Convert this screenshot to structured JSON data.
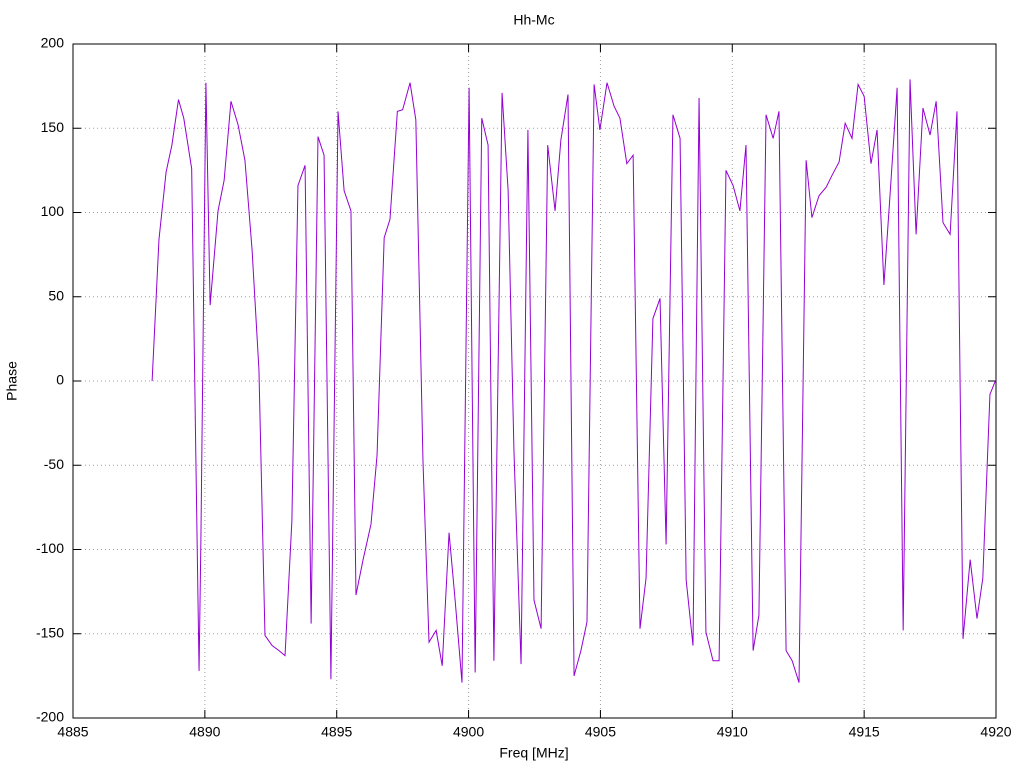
{
  "chart_data": {
    "type": "line",
    "title": "Hh-Mc",
    "x_label": "Freq [MHz]",
    "y_label": "Phase",
    "x": [
      4888.0,
      4888.26,
      4888.53,
      4888.75,
      4889.0,
      4889.2,
      4889.5,
      4889.66,
      4889.78,
      4889.85,
      4890.04,
      4890.2,
      4890.5,
      4890.73,
      4890.99,
      4891.26,
      4891.52,
      4891.79,
      4892.05,
      4892.28,
      4892.55,
      4892.81,
      4893.04,
      4893.3,
      4893.53,
      4893.8,
      4894.03,
      4894.29,
      4894.52,
      4894.78,
      4895.05,
      4895.28,
      4895.54,
      4895.73,
      4896.0,
      4896.3,
      4896.53,
      4896.8,
      4897.02,
      4897.3,
      4897.5,
      4897.78,
      4898.0,
      4898.27,
      4898.5,
      4898.77,
      4899.0,
      4899.26,
      4899.49,
      4899.75,
      4900.02,
      4900.25,
      4900.5,
      4900.74,
      4900.96,
      4901.27,
      4901.5,
      4901.72,
      4901.99,
      4902.25,
      4902.48,
      4902.75,
      4903.0,
      4903.28,
      4903.5,
      4903.77,
      4904.0,
      4904.26,
      4904.49,
      4904.76,
      4904.98,
      4905.25,
      4905.52,
      4905.74,
      4906.0,
      4906.24,
      4906.5,
      4906.73,
      4906.99,
      4907.26,
      4907.49,
      4907.75,
      4908.02,
      4908.25,
      4908.51,
      4908.74,
      4909.0,
      4909.27,
      4909.5,
      4909.76,
      4910.03,
      4910.29,
      4910.52,
      4910.79,
      4911.01,
      4911.28,
      4911.55,
      4911.77,
      4912.04,
      4912.27,
      4912.53,
      4912.8,
      4913.02,
      4913.29,
      4913.56,
      4913.78,
      4914.05,
      4914.28,
      4914.54,
      4914.77,
      4915.0,
      4915.26,
      4915.49,
      4915.75,
      4915.98,
      4916.25,
      4916.48,
      4916.74,
      4916.97,
      4917.23,
      4917.5,
      4917.73,
      4917.99,
      4918.26,
      4918.52,
      4918.75,
      4919.02,
      4919.28,
      4919.5,
      4919.77,
      4920.0
    ],
    "series": [
      {
        "name": "Phase",
        "color": "#9400d3",
        "values": [
          0,
          84,
          124,
          140,
          167,
          156,
          126,
          -47,
          -172,
          -94,
          177,
          45,
          101,
          119,
          166,
          152,
          131,
          78,
          7,
          -151,
          -157,
          -160,
          -163,
          -83,
          116,
          128,
          -144,
          145,
          134,
          -177,
          160,
          113,
          101,
          -127,
          -106,
          -85,
          -44,
          85,
          96,
          160,
          161,
          177,
          155,
          -47,
          -155,
          -148,
          -169,
          -90,
          -130,
          -179,
          174,
          -173,
          156,
          140,
          -166,
          171,
          113,
          -41,
          -168,
          149,
          -130,
          -147,
          140,
          101,
          143,
          170,
          -175,
          -160,
          -143,
          176,
          149,
          177,
          163,
          156,
          129,
          134,
          -147,
          -117,
          37,
          49,
          -97,
          158,
          144,
          -118,
          -157,
          168,
          -149,
          -166,
          -166,
          125,
          116,
          101,
          140,
          -160,
          -139,
          158,
          144,
          160,
          -160,
          -166,
          -179,
          131,
          97,
          110,
          115,
          122,
          130,
          153,
          144,
          176,
          169,
          129,
          149,
          57,
          110,
          174,
          -148,
          179,
          87,
          162,
          146,
          166,
          94,
          87,
          160,
          -153,
          -106,
          -141,
          -117,
          -8,
          1
        ]
      }
    ],
    "xlim": [
      4885,
      4920
    ],
    "xticks": [
      4885,
      4890,
      4895,
      4900,
      4905,
      4910,
      4915,
      4920
    ],
    "ylim": [
      -200,
      200
    ],
    "yticks": [
      -200,
      -150,
      -100,
      -50,
      0,
      50,
      100,
      150,
      200
    ],
    "grid": true
  }
}
